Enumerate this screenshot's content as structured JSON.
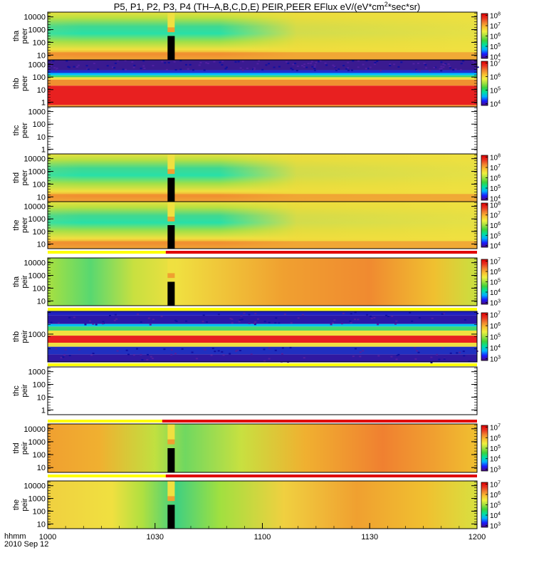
{
  "figure": {
    "title_parts": [
      "P5, P1, P2, P3, P4 (TH–A,B,C,D,E) PEIR,PEER EFlux eV/(eV*cm",
      "2",
      "*sec*sr)"
    ],
    "time_label": "hhmm",
    "date_label": "2010 Sep 12"
  },
  "chart_data": {
    "type": "heatmap",
    "x_axis": {
      "range": [
        "10:00",
        "12:00"
      ],
      "tick_labels": [
        "1000",
        "1030",
        "1100",
        "1130",
        "1200"
      ],
      "tick_minutes": [
        0,
        30,
        60,
        90,
        120
      ]
    },
    "colormap": [
      "#4b0a7a",
      "#1a1aff",
      "#00b0ff",
      "#00e0a0",
      "#3cd23c",
      "#a0e040",
      "#f0f040",
      "#f8c030",
      "#f08030",
      "#e83020",
      "#e00000"
    ],
    "panels": [
      {
        "id": "tha-peer",
        "probe": "tha",
        "species": "peer",
        "yscale": "log",
        "y_tick_labels": [
          "10000",
          "1000",
          "100",
          "10"
        ],
        "colorbar_ticks": [
          "10^8",
          "10^7",
          "10^6",
          "10^5",
          "10^4"
        ],
        "data_gap_minutes": [
          33.5,
          35.5
        ],
        "pattern": "peer-low-flux-mid"
      },
      {
        "id": "thb-peer",
        "probe": "thb",
        "species": "peer",
        "yscale": "log",
        "y_tick_labels": [
          "1000",
          "100",
          "10",
          "1"
        ],
        "colorbar_ticks": [
          "10^7",
          "10^6",
          "10^5",
          "10^4"
        ],
        "pattern": "artemis-bands"
      },
      {
        "id": "thc-peer",
        "probe": "thc",
        "species": "peer",
        "yscale": "log",
        "y_tick_labels": [
          "1000",
          "100",
          "10",
          "1"
        ],
        "colorbar_ticks": [],
        "pattern": "empty"
      },
      {
        "id": "thd-peer",
        "probe": "thd",
        "species": "peer",
        "yscale": "log",
        "y_tick_labels": [
          "10000",
          "1000",
          "100",
          "10"
        ],
        "colorbar_ticks": [
          "10^8",
          "10^7",
          "10^6",
          "10^5",
          "10^4"
        ],
        "data_gap_minutes": [
          33.5,
          35.5
        ],
        "pattern": "peer-low-flux-mid"
      },
      {
        "id": "the-peer",
        "probe": "the",
        "species": "peer",
        "yscale": "log",
        "y_tick_labels": [
          "10000",
          "1000",
          "100",
          "10"
        ],
        "colorbar_ticks": [
          "10^8",
          "10^7",
          "10^6",
          "10^5",
          "10^4"
        ],
        "data_gap_minutes": [
          33.5,
          35.5
        ],
        "pattern": "peer-low-flux-mid"
      },
      {
        "id": "tha-peir",
        "probe": "tha",
        "species": "peir",
        "yscale": "log",
        "y_tick_labels": [
          "10000",
          "1000",
          "100",
          "10"
        ],
        "colorbar_ticks": [
          "10^7",
          "10^6",
          "10^5",
          "10^4",
          "10^3"
        ],
        "data_gap_minutes": [
          33.5,
          35.5
        ],
        "pattern": "peir-rising"
      },
      {
        "id": "thb-peir",
        "probe": "thb",
        "species": "peir",
        "yscale": "log",
        "y_tick_labels": [
          "1000"
        ],
        "colorbar_ticks": [
          "10^7",
          "10^6",
          "10^5",
          "10^4",
          "10^3"
        ],
        "pattern": "artemis-bands"
      },
      {
        "id": "thc-peir",
        "probe": "thc",
        "species": "peir",
        "yscale": "log",
        "y_tick_labels": [
          "1000",
          "100",
          "10",
          "1"
        ],
        "colorbar_ticks": [],
        "pattern": "empty"
      },
      {
        "id": "thd-peir",
        "probe": "thd",
        "species": "peir",
        "yscale": "log",
        "y_tick_labels": [
          "10000",
          "1000",
          "100",
          "10"
        ],
        "colorbar_ticks": [
          "10^7",
          "10^6",
          "10^5",
          "10^4",
          "10^3"
        ],
        "data_gap_minutes": [
          33.5,
          35.5
        ],
        "pattern": "peir-rising"
      },
      {
        "id": "the-peir",
        "probe": "the",
        "species": "peir",
        "yscale": "log",
        "y_tick_labels": [
          "10000",
          "1000",
          "100",
          "10"
        ],
        "colorbar_ticks": [
          "10^7",
          "10^6",
          "10^5",
          "10^4",
          "10^3"
        ],
        "data_gap_minutes": [
          33.5,
          35.5
        ],
        "pattern": "peir-rising"
      }
    ],
    "mode_bars": [
      {
        "after_panel": "the-peer",
        "segments": [
          {
            "from_minute": 0,
            "to_minute": 33,
            "color": "#ffff00"
          },
          {
            "from_minute": 33,
            "to_minute": 120,
            "color": "#e00000"
          }
        ]
      },
      {
        "after_panel": "tha-peir",
        "segments": [
          {
            "from_minute": 0,
            "to_minute": 120,
            "color": "#ffff00"
          }
        ]
      },
      {
        "after_panel": "thb-peir",
        "segments": [
          {
            "from_minute": 0,
            "to_minute": 120,
            "color": "#ffff00"
          }
        ]
      },
      {
        "after_panel": "thc-peir",
        "segments": [
          {
            "from_minute": 0,
            "to_minute": 32,
            "color": "#ffff00"
          },
          {
            "from_minute": 32,
            "to_minute": 120,
            "color": "#e00000"
          }
        ]
      },
      {
        "after_panel": "thd-peir",
        "segments": [
          {
            "from_minute": 0,
            "to_minute": 33,
            "color": "#ffff00"
          },
          {
            "from_minute": 33,
            "to_minute": 120,
            "color": "#e00000"
          }
        ]
      }
    ]
  }
}
